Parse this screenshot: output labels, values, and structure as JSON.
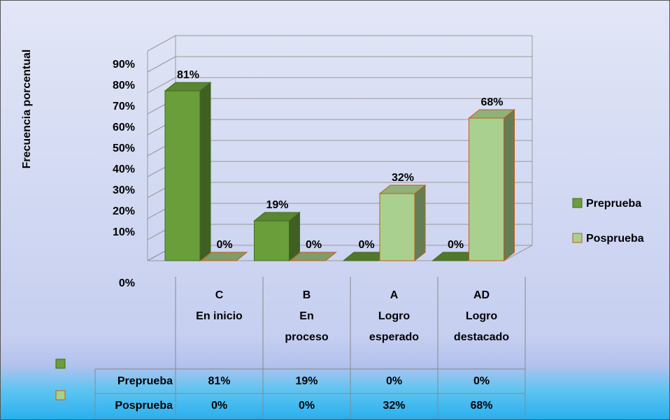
{
  "chart_data": {
    "type": "bar3d",
    "y_axis_label": "Frecuencia porcentual",
    "categories": [
      "C",
      "B",
      "A",
      "AD"
    ],
    "category_descriptions": [
      "En inicio",
      "En proceso",
      "Logro esperado",
      "Logro destacado"
    ],
    "series": [
      {
        "name": "Preprueba",
        "color": "#6a9e3a",
        "edge": "#3e6a1e",
        "values": [
          81,
          19,
          0,
          0
        ],
        "value_labels": [
          "81%",
          "19%",
          "0%",
          "0%"
        ]
      },
      {
        "name": "Posprueba",
        "color": "#a9d08e",
        "edge": "#c55a11",
        "values": [
          0,
          0,
          32,
          68
        ],
        "value_labels": [
          "0%",
          "0%",
          "32%",
          "68%"
        ]
      }
    ],
    "ylim": [
      0,
      100
    ],
    "yticks": [
      {
        "value": 0,
        "label": "0%"
      },
      {
        "value": 10,
        "label": "10%"
      },
      {
        "value": 20,
        "label": "20%"
      },
      {
        "value": 30,
        "label": "30%"
      },
      {
        "value": 40,
        "label": "40%"
      },
      {
        "value": 50,
        "label": "50%"
      },
      {
        "value": 60,
        "label": "60%"
      },
      {
        "value": 70,
        "label": "70%"
      },
      {
        "value": 80,
        "label": "80%"
      },
      {
        "value": 90,
        "label": "90%"
      }
    ],
    "grid": true,
    "legend": "right",
    "data_table": true
  }
}
